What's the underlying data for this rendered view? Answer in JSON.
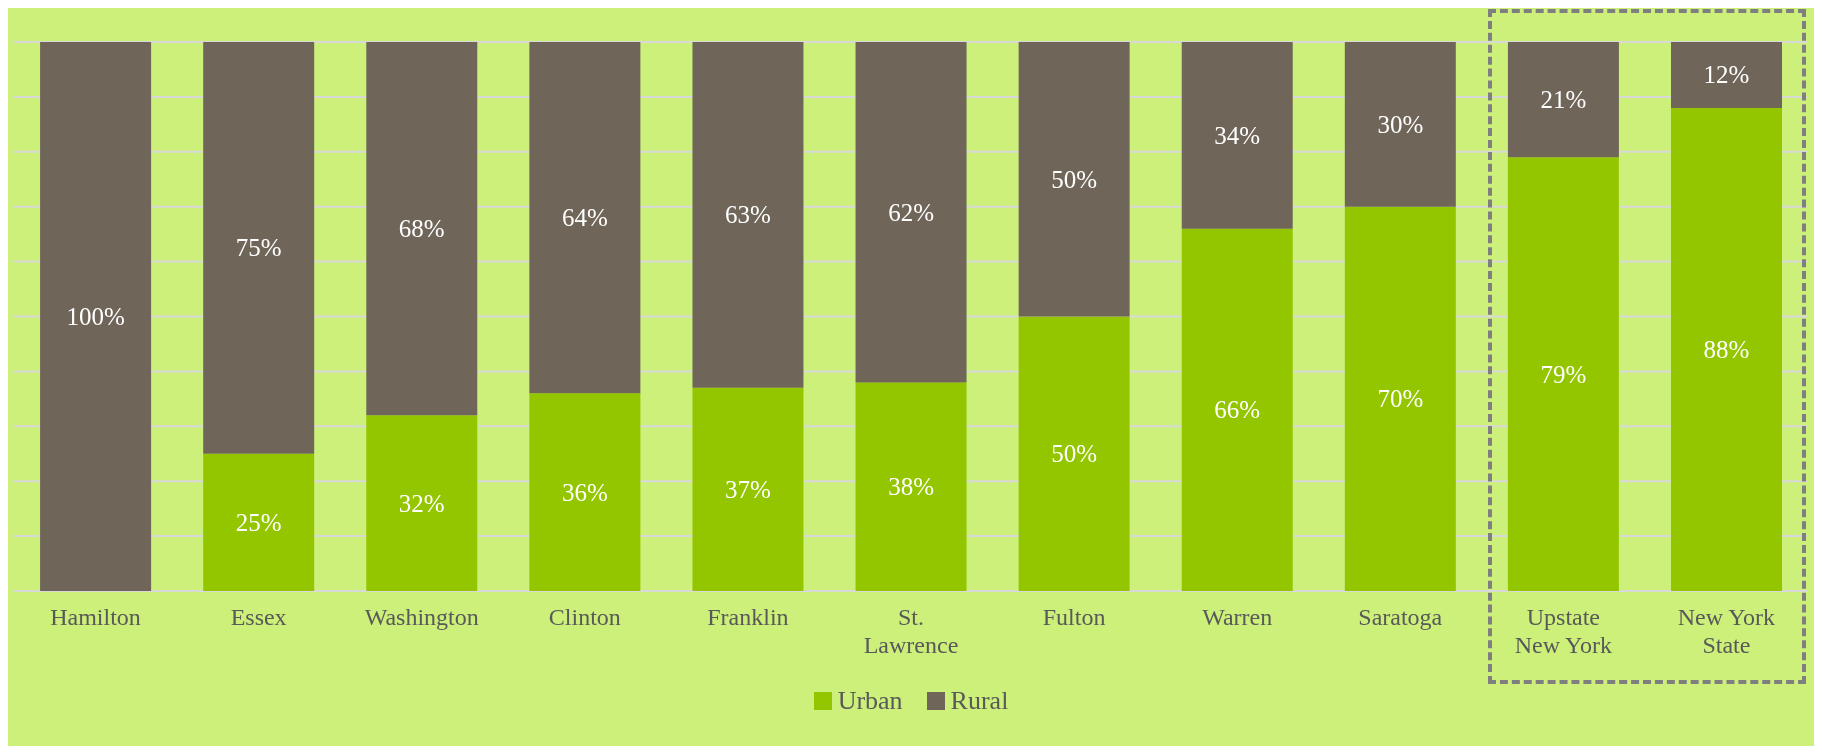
{
  "chart_data": {
    "type": "bar",
    "stacked": true,
    "categories": [
      "Hamilton",
      "Essex",
      "Washington",
      "Clinton",
      "Franklin",
      "St. Lawrence",
      "Fulton",
      "Warren",
      "Saratoga",
      "Upstate New York",
      "New York State"
    ],
    "series": [
      {
        "name": "Urban",
        "color": "#94c600",
        "values": [
          0,
          25,
          32,
          36,
          37,
          38,
          50,
          66,
          70,
          79,
          88
        ],
        "value_labels": [
          null,
          "25%",
          "32%",
          "36%",
          "37%",
          "38%",
          "50%",
          "66%",
          "70%",
          "79%",
          "88%"
        ]
      },
      {
        "name": "Rural",
        "color": "#6f6659",
        "values": [
          100,
          75,
          68,
          64,
          63,
          62,
          50,
          34,
          30,
          21,
          12
        ],
        "value_labels": [
          "100%",
          "75%",
          "68%",
          "64%",
          "63%",
          "62%",
          "50%",
          "34%",
          "30%",
          "21%",
          "12%"
        ]
      }
    ],
    "ylim": [
      0,
      100
    ],
    "yticks": [
      {
        "value": 0,
        "label": null
      },
      {
        "value": 10,
        "label": null
      },
      {
        "value": 20,
        "label": null
      },
      {
        "value": 30,
        "label": null
      },
      {
        "value": 40,
        "label": null
      },
      {
        "value": 50,
        "label": null
      },
      {
        "value": 60,
        "label": null
      },
      {
        "value": 70,
        "label": null
      },
      {
        "value": 80,
        "label": null
      },
      {
        "value": 90,
        "label": null
      },
      {
        "value": 100,
        "label": null
      }
    ],
    "tick_labels": "x",
    "grid": "y",
    "legend": "bottom"
  }
}
